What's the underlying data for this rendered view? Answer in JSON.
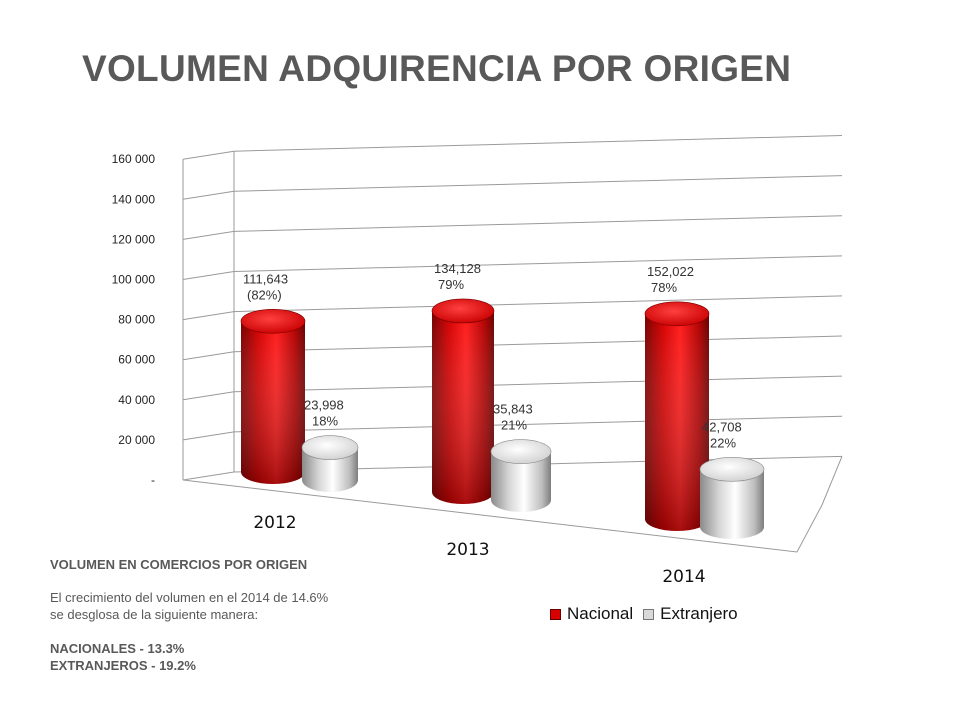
{
  "title": "VOLUMEN ADQUIRENCIA POR ORIGEN",
  "chart_data": {
    "type": "bar",
    "style": "3d-cylinder",
    "categories": [
      "2012",
      "2013",
      "2014"
    ],
    "series": [
      {
        "name": "Nacional",
        "color": "#e00000",
        "values": [
          111643,
          134128,
          152022
        ],
        "labels": [
          "111,643",
          "134,128",
          "152,022"
        ],
        "pct_labels": [
          "(82%)",
          "79%",
          "78%"
        ]
      },
      {
        "name": "Extranjero",
        "color": "#d9d9d9",
        "values": [
          23998,
          35843,
          42708
        ],
        "labels": [
          "23,998",
          "35,843",
          "42,708"
        ],
        "pct_labels": [
          "18%",
          "21%",
          "22%"
        ]
      }
    ],
    "yticks": [
      "-",
      "20 000",
      "40 000",
      "60 000",
      "80 000",
      "100 000",
      "120 000",
      "140 000",
      "160 000"
    ],
    "ylim": [
      0,
      160000
    ],
    "grid": true,
    "legend_position": "bottom-right"
  },
  "notes": {
    "heading": "VOLUMEN EN COMERCIOS POR ORIGEN",
    "line1": "El crecimiento del volumen en el 2014  de 14.6%",
    "line2": "se desglosa de la siguiente manera:",
    "nacionales": "NACIONALES - 13.3%",
    "extranjeros": "EXTRANJEROS - 19.2%"
  }
}
